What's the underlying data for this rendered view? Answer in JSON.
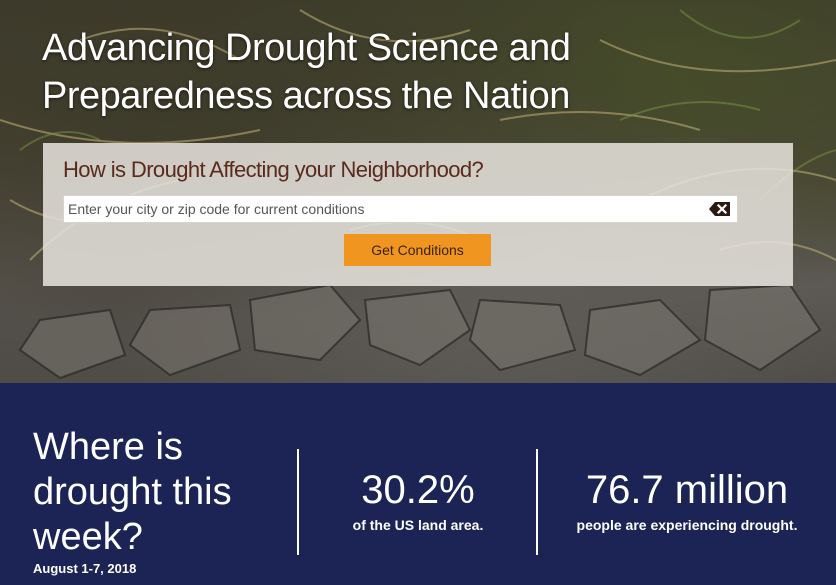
{
  "hero": {
    "title": "Advancing Drought Science and Preparedness across the Nation",
    "search": {
      "heading": "How is Drought Affecting your Neighborhood?",
      "placeholder": "Enter your city or zip code for current conditions",
      "value": "",
      "clear_icon": "backspace-clear-icon",
      "button_label": "Get Conditions"
    }
  },
  "stats": {
    "question": "Where is drought this week?",
    "date_range": "August 1-7, 2018",
    "land_area": {
      "value": "30.2%",
      "caption": "of the US land area."
    },
    "people": {
      "value": "76.7 million",
      "caption": "people are experiencing drought."
    }
  },
  "colors": {
    "stats_background": "#1c2456",
    "button": "#f0951f",
    "heading": "#5a2a1c",
    "panel": "#e8e4de"
  }
}
